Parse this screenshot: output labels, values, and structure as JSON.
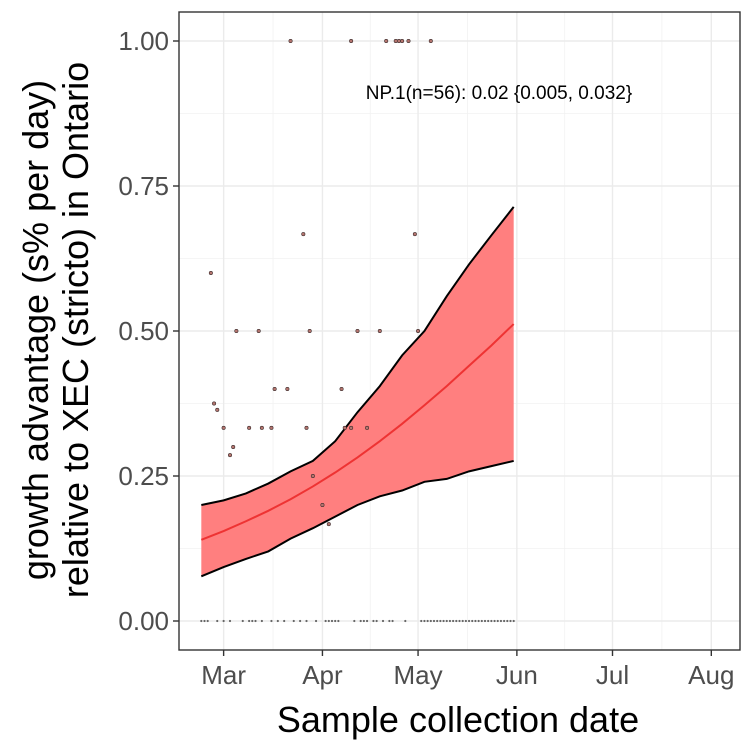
{
  "chart_data": {
    "type": "line",
    "xlabel": "Sample collection date",
    "ylabel_lines": [
      "growth advantage (s% per day)",
      "relative to XEC (stricto) in Ontario"
    ],
    "annotation": "NP.1(n=56): 0.02 {0.005, 0.032}",
    "x_ticks": [
      "Mar",
      "Apr",
      "May",
      "Jun",
      "Jul",
      "Aug"
    ],
    "x_tick_dates": [
      "2025-03-01",
      "2025-04-01",
      "2025-05-01",
      "2025-06-01",
      "2025-07-01",
      "2025-08-01"
    ],
    "y_ticks": [
      "0.00",
      "0.25",
      "0.50",
      "0.75",
      "1.00"
    ],
    "y_tick_values": [
      0,
      0.25,
      0.5,
      0.75,
      1.0
    ],
    "xlim": [
      "2025-02-15",
      "2025-08-10"
    ],
    "ylim": [
      -0.05,
      1.05
    ],
    "grid": true,
    "colors": {
      "ribbon": "#ff7f7f",
      "fit_line": "#ee3333",
      "ribbon_edge": "#000000",
      "points": "#b5756f"
    },
    "series": [
      {
        "role": "fit",
        "x": [
          "2025-02-22",
          "2025-03-01",
          "2025-03-08",
          "2025-03-15",
          "2025-03-22",
          "2025-03-29",
          "2025-04-05",
          "2025-04-12",
          "2025-04-19",
          "2025-04-26",
          "2025-05-03",
          "2025-05-10",
          "2025-05-17",
          "2025-05-24",
          "2025-05-31"
        ],
        "y": [
          0.14,
          0.155,
          0.172,
          0.19,
          0.21,
          0.232,
          0.256,
          0.282,
          0.31,
          0.34,
          0.372,
          0.405,
          0.44,
          0.475,
          0.512
        ],
        "lower": [
          0.077,
          0.093,
          0.107,
          0.12,
          0.142,
          0.16,
          0.18,
          0.2,
          0.215,
          0.225,
          0.24,
          0.245,
          0.258,
          0.267,
          0.276
        ],
        "upper": [
          0.2,
          0.208,
          0.22,
          0.237,
          0.258,
          0.276,
          0.31,
          0.36,
          0.405,
          0.458,
          0.5,
          0.56,
          0.615,
          0.665,
          0.714
        ]
      }
    ],
    "points": [
      {
        "x": "2025-02-25",
        "y": 0.6
      },
      {
        "x": "2025-02-26",
        "y": 0.375
      },
      {
        "x": "2025-02-27",
        "y": 0.364
      },
      {
        "x": "2025-03-01",
        "y": 0.333
      },
      {
        "x": "2025-03-03",
        "y": 0.286
      },
      {
        "x": "2025-03-04",
        "y": 0.3
      },
      {
        "x": "2025-03-05",
        "y": 0.5
      },
      {
        "x": "2025-03-09",
        "y": 0.333
      },
      {
        "x": "2025-03-12",
        "y": 0.5
      },
      {
        "x": "2025-03-13",
        "y": 0.333
      },
      {
        "x": "2025-03-16",
        "y": 0.333
      },
      {
        "x": "2025-03-17",
        "y": 0.4
      },
      {
        "x": "2025-03-21",
        "y": 0.4
      },
      {
        "x": "2025-03-22",
        "y": 1.0
      },
      {
        "x": "2025-03-26",
        "y": 0.667
      },
      {
        "x": "2025-03-27",
        "y": 0.333
      },
      {
        "x": "2025-03-28",
        "y": 0.5
      },
      {
        "x": "2025-03-29",
        "y": 0.25
      },
      {
        "x": "2025-04-01",
        "y": 0.2
      },
      {
        "x": "2025-04-03",
        "y": 0.167
      },
      {
        "x": "2025-04-07",
        "y": 0.4
      },
      {
        "x": "2025-04-08",
        "y": 0.333
      },
      {
        "x": "2025-04-10",
        "y": 0.333
      },
      {
        "x": "2025-04-10",
        "y": 1.0
      },
      {
        "x": "2025-04-12",
        "y": 0.5
      },
      {
        "x": "2025-04-15",
        "y": 0.333
      },
      {
        "x": "2025-04-19",
        "y": 0.5
      },
      {
        "x": "2025-04-21",
        "y": 1.0
      },
      {
        "x": "2025-04-24",
        "y": 1.0
      },
      {
        "x": "2025-04-25",
        "y": 1.0
      },
      {
        "x": "2025-04-26",
        "y": 1.0
      },
      {
        "x": "2025-04-28",
        "y": 1.0
      },
      {
        "x": "2025-04-30",
        "y": 0.667
      },
      {
        "x": "2025-05-01",
        "y": 0.5
      },
      {
        "x": "2025-05-05",
        "y": 1.0
      },
      {
        "x": "2025-02-22",
        "y": 0
      },
      {
        "x": "2025-02-23",
        "y": 0
      },
      {
        "x": "2025-02-24",
        "y": 0
      },
      {
        "x": "2025-02-27",
        "y": 0
      },
      {
        "x": "2025-03-01",
        "y": 0
      },
      {
        "x": "2025-03-03",
        "y": 0
      },
      {
        "x": "2025-03-07",
        "y": 0
      },
      {
        "x": "2025-03-09",
        "y": 0
      },
      {
        "x": "2025-03-10",
        "y": 0
      },
      {
        "x": "2025-03-11",
        "y": 0
      },
      {
        "x": "2025-03-13",
        "y": 0
      },
      {
        "x": "2025-03-16",
        "y": 0
      },
      {
        "x": "2025-03-18",
        "y": 0
      },
      {
        "x": "2025-03-20",
        "y": 0
      },
      {
        "x": "2025-03-23",
        "y": 0
      },
      {
        "x": "2025-03-25",
        "y": 0
      },
      {
        "x": "2025-03-27",
        "y": 0
      },
      {
        "x": "2025-03-30",
        "y": 0
      },
      {
        "x": "2025-04-02",
        "y": 0
      },
      {
        "x": "2025-04-03",
        "y": 0
      },
      {
        "x": "2025-04-04",
        "y": 0
      },
      {
        "x": "2025-04-05",
        "y": 0
      },
      {
        "x": "2025-04-06",
        "y": 0
      },
      {
        "x": "2025-04-11",
        "y": 0
      },
      {
        "x": "2025-04-13",
        "y": 0
      },
      {
        "x": "2025-04-14",
        "y": 0
      },
      {
        "x": "2025-04-15",
        "y": 0
      },
      {
        "x": "2025-04-17",
        "y": 0
      },
      {
        "x": "2025-04-18",
        "y": 0
      },
      {
        "x": "2025-04-20",
        "y": 0
      },
      {
        "x": "2025-04-22",
        "y": 0
      },
      {
        "x": "2025-04-23",
        "y": 0
      },
      {
        "x": "2025-04-27",
        "y": 0
      },
      {
        "x": "2025-05-02",
        "y": 0
      },
      {
        "x": "2025-05-03",
        "y": 0
      },
      {
        "x": "2025-05-04",
        "y": 0
      },
      {
        "x": "2025-05-05",
        "y": 0
      },
      {
        "x": "2025-05-06",
        "y": 0
      },
      {
        "x": "2025-05-07",
        "y": 0
      },
      {
        "x": "2025-05-08",
        "y": 0
      },
      {
        "x": "2025-05-09",
        "y": 0
      },
      {
        "x": "2025-05-10",
        "y": 0
      },
      {
        "x": "2025-05-11",
        "y": 0
      },
      {
        "x": "2025-05-12",
        "y": 0
      },
      {
        "x": "2025-05-13",
        "y": 0
      },
      {
        "x": "2025-05-14",
        "y": 0
      },
      {
        "x": "2025-05-15",
        "y": 0
      },
      {
        "x": "2025-05-16",
        "y": 0
      },
      {
        "x": "2025-05-17",
        "y": 0
      },
      {
        "x": "2025-05-18",
        "y": 0
      },
      {
        "x": "2025-05-19",
        "y": 0
      },
      {
        "x": "2025-05-20",
        "y": 0
      },
      {
        "x": "2025-05-21",
        "y": 0
      },
      {
        "x": "2025-05-22",
        "y": 0
      },
      {
        "x": "2025-05-23",
        "y": 0
      },
      {
        "x": "2025-05-24",
        "y": 0
      },
      {
        "x": "2025-05-25",
        "y": 0
      },
      {
        "x": "2025-05-26",
        "y": 0
      },
      {
        "x": "2025-05-27",
        "y": 0
      },
      {
        "x": "2025-05-28",
        "y": 0
      },
      {
        "x": "2025-05-29",
        "y": 0
      },
      {
        "x": "2025-05-30",
        "y": 0
      },
      {
        "x": "2025-05-31",
        "y": 0
      }
    ]
  }
}
